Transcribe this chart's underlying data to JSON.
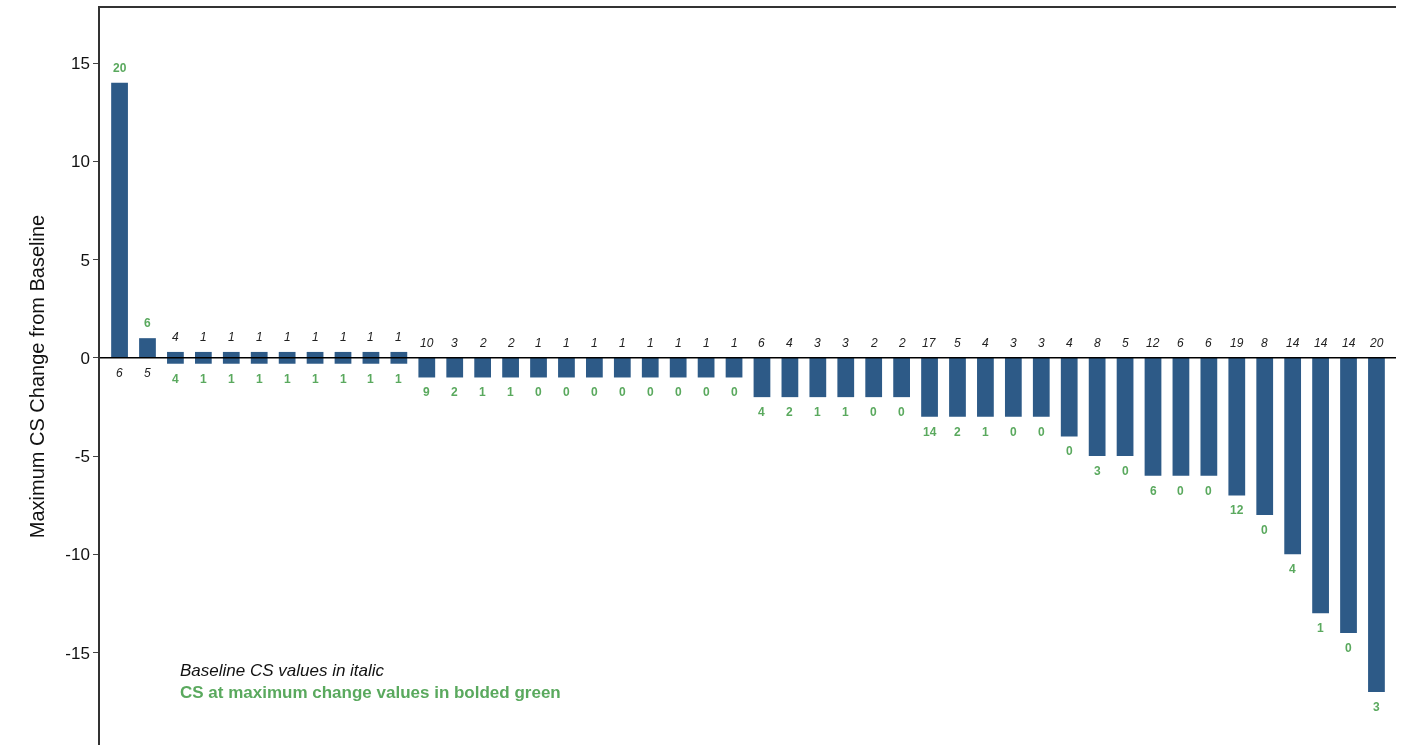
{
  "chart_data": {
    "type": "bar",
    "ylabel": "Maximum CS Change from Baseline",
    "categories": [
      null,
      null,
      null,
      null,
      null,
      null,
      null,
      null,
      null,
      null,
      null,
      null,
      null,
      null,
      null,
      null,
      null,
      null,
      null,
      null,
      null,
      null,
      null,
      null,
      null,
      null,
      null,
      null,
      null,
      null,
      null,
      null,
      null,
      null,
      null,
      null,
      null,
      null,
      null,
      null,
      null,
      null,
      null,
      null,
      null,
      null
    ],
    "values": [
      14,
      1,
      -0.6,
      -0.6,
      -0.6,
      -0.6,
      -0.6,
      -0.6,
      -0.6,
      -0.6,
      -0.6,
      -1,
      -1,
      -1,
      -1,
      -1,
      -1,
      -1,
      -1,
      -1,
      -1,
      -1,
      -1,
      -2,
      -2,
      -2,
      -2,
      -2,
      -2,
      -3,
      -3,
      -3,
      -3,
      -3,
      -4,
      -5,
      -5,
      -6,
      -6,
      -6,
      -7,
      -8,
      -10,
      -13,
      -14,
      -17
    ],
    "base": [
      0,
      0,
      0.3,
      0.3,
      0.3,
      0.3,
      0.3,
      0.3,
      0.3,
      0.3,
      0.3,
      0,
      0,
      0,
      0,
      0,
      0,
      0,
      0,
      0,
      0,
      0,
      0,
      0,
      0,
      0,
      0,
      0,
      0,
      0,
      0,
      0,
      0,
      0,
      0,
      0,
      0,
      0,
      0,
      0,
      0,
      0,
      0,
      0,
      0,
      0
    ],
    "color": "#2d5a87",
    "ylim": [
      -19.7,
      17.8
    ],
    "yticks": [
      -15,
      -10,
      -5,
      0,
      5,
      10,
      15
    ],
    "tick_labels": "y",
    "ref_lines": [
      {
        "axis": "y",
        "value": 0,
        "color": "#000000"
      }
    ],
    "annotations": [
      "20",
      "6",
      "6",
      "5",
      "4",
      "4",
      "1",
      "1",
      "1",
      "1",
      "1",
      "1",
      "1",
      "1",
      "1",
      "1",
      "1",
      "1",
      "1",
      "1",
      "1",
      "1",
      "10",
      "9",
      "3",
      "2",
      "2",
      "1",
      "2",
      "1",
      "1",
      "0",
      "1",
      "0",
      "1",
      "0",
      "1",
      "0",
      "1",
      "0",
      "1",
      "0",
      "1",
      "0",
      "1",
      "0",
      "6",
      "4",
      "4",
      "2",
      "3",
      "1",
      "3",
      "1",
      "2",
      "0",
      "2",
      "0",
      "17",
      "14",
      "5",
      "2",
      "4",
      "1",
      "3",
      "0",
      "3",
      "0",
      "4",
      "0",
      "8",
      "3",
      "5",
      "0",
      "12",
      "6",
      "6",
      "0",
      "6",
      "0",
      "19",
      "12",
      "8",
      "0",
      "14",
      "4",
      "14",
      "1",
      "14",
      "0",
      "20",
      "3",
      "Baseline CS values in italic",
      "CS at maximum change values in bolded green"
    ]
  }
}
